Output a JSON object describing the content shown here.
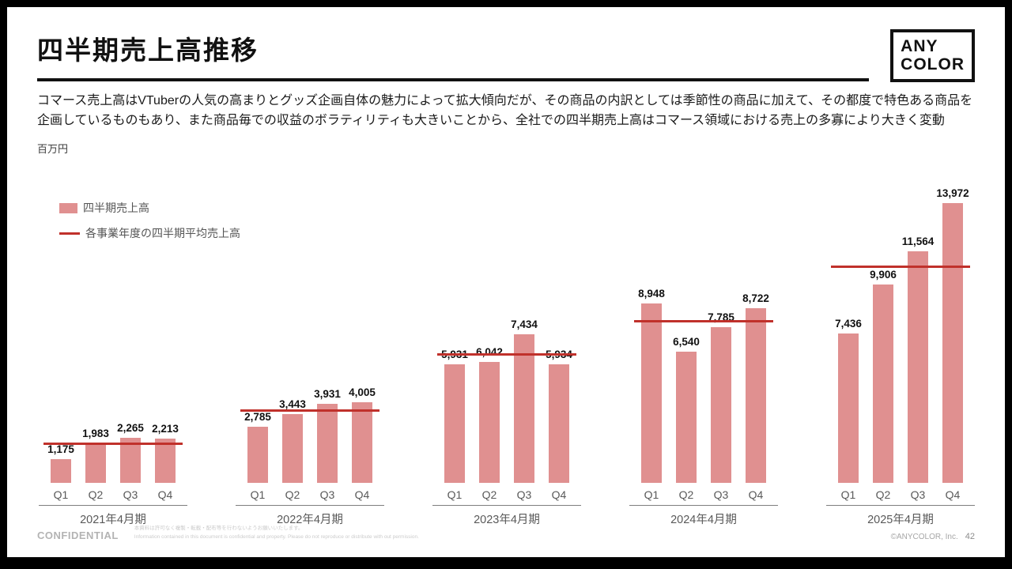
{
  "header": {
    "title": "四半期売上高推移",
    "logo_line1": "ANY",
    "logo_line2": "COLOR"
  },
  "description": "コマース売上高はVTuberの人気の高まりとグッズ企画自体の魅力によって拡大傾向だが、その商品の内訳としては季節性の商品に加えて、その都度で特色ある商品を企画しているものもあり、また商品毎での収益のボラティリティも大きいことから、全社での四半期売上高はコマース領域における売上の多寡により大きく変動",
  "chart_data": {
    "type": "bar",
    "title": "四半期売上高推移",
    "unit": "百万円",
    "xlabel": "",
    "ylabel": "百万円",
    "ylim": [
      0,
      14000
    ],
    "grid": false,
    "legend_position": "top-left",
    "legend": {
      "bar": "四半期売上高",
      "line": "各事業年度の四半期平均売上高"
    },
    "quarters": [
      "Q1",
      "Q2",
      "Q3",
      "Q4"
    ],
    "groups": [
      {
        "label": "2021年4月期",
        "values": [
          1175,
          1983,
          2265,
          2213
        ],
        "average": 1909
      },
      {
        "label": "2022年4月期",
        "values": [
          2785,
          3443,
          3931,
          4005
        ],
        "average": 3541
      },
      {
        "label": "2023年4月期",
        "values": [
          5931,
          6042,
          7434,
          5934
        ],
        "average": 6335
      },
      {
        "label": "2024年4月期",
        "values": [
          8948,
          6540,
          7785,
          8722
        ],
        "average": 7999
      },
      {
        "label": "2025年4月期",
        "values": [
          7436,
          9906,
          11564,
          13972
        ],
        "average": 10720
      }
    ],
    "colors": {
      "bar": "#e09090",
      "average_line": "#c0312b"
    }
  },
  "footer": {
    "confidential": "CONFIDENTIAL",
    "disclaimer_jp": "本資料は許可なく複製・転載・配布等を行わないようお願いいたします。",
    "disclaimer_en": "Information contained in this document is confidential and property. Please do not reproduce or distribute with out permission.",
    "copyright": "©ANYCOLOR, Inc.",
    "page_number": "42"
  }
}
